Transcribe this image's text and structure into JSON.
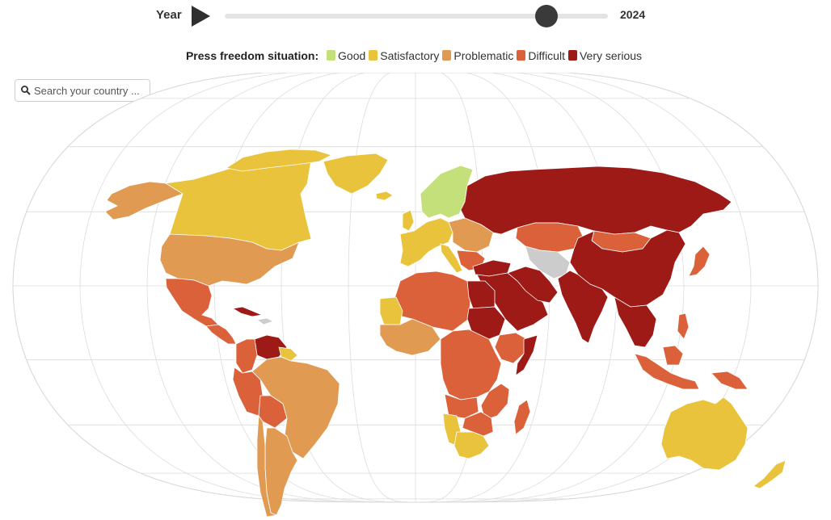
{
  "controls": {
    "year_label": "Year",
    "year_value": "2024",
    "slider": {
      "min": 2013,
      "max": 2024,
      "value": 2024,
      "thumb_fraction": 0.84
    }
  },
  "legend": {
    "title": "Press freedom situation:",
    "items": [
      {
        "label": "Good",
        "color": "#c3e07a"
      },
      {
        "label": "Satisfactory",
        "color": "#eac33d"
      },
      {
        "label": "Problematic",
        "color": "#e19a52"
      },
      {
        "label": "Difficult",
        "color": "#db613a"
      },
      {
        "label": "Very serious",
        "color": "#9e1a17"
      }
    ]
  },
  "search": {
    "placeholder": "Search your country ..."
  },
  "map": {
    "projection": "robinson",
    "graticule": true,
    "categories": {
      "good": "#c3e07a",
      "satisfactory": "#eac33d",
      "problematic": "#e19a52",
      "difficult": "#db613a",
      "very_serious": "#9e1a17"
    },
    "regions": [
      {
        "name": "Alaska",
        "category": "problematic"
      },
      {
        "name": "Canada",
        "category": "satisfactory"
      },
      {
        "name": "United States",
        "category": "problematic"
      },
      {
        "name": "Mexico",
        "category": "difficult"
      },
      {
        "name": "Central America",
        "category": "difficult"
      },
      {
        "name": "Nicaragua",
        "category": "very_serious"
      },
      {
        "name": "Cuba",
        "category": "very_serious"
      },
      {
        "name": "Venezuela",
        "category": "very_serious"
      },
      {
        "name": "Colombia",
        "category": "difficult"
      },
      {
        "name": "Guianas",
        "category": "satisfactory"
      },
      {
        "name": "Peru",
        "category": "difficult"
      },
      {
        "name": "Brazil",
        "category": "problematic"
      },
      {
        "name": "Bolivia",
        "category": "difficult"
      },
      {
        "name": "Argentina",
        "category": "problematic"
      },
      {
        "name": "Chile",
        "category": "problematic"
      },
      {
        "name": "Greenland",
        "category": "satisfactory"
      },
      {
        "name": "Iceland",
        "category": "satisfactory"
      },
      {
        "name": "Scandinavia",
        "category": "good"
      },
      {
        "name": "Western Europe",
        "category": "satisfactory"
      },
      {
        "name": "Eastern Europe",
        "category": "problematic"
      },
      {
        "name": "Balkans",
        "category": "difficult"
      },
      {
        "name": "Russia",
        "category": "very_serious"
      },
      {
        "name": "Kazakhstan",
        "category": "difficult"
      },
      {
        "name": "Mongolia",
        "category": "difficult"
      },
      {
        "name": "China",
        "category": "very_serious"
      },
      {
        "name": "Middle East",
        "category": "very_serious"
      },
      {
        "name": "Iran",
        "category": "very_serious"
      },
      {
        "name": "India",
        "category": "very_serious"
      },
      {
        "name": "Southeast Asia",
        "category": "very_serious"
      },
      {
        "name": "Japan",
        "category": "difficult"
      },
      {
        "name": "Indonesia",
        "category": "difficult"
      },
      {
        "name": "Philippines",
        "category": "difficult"
      },
      {
        "name": "Papua New Guinea",
        "category": "difficult"
      },
      {
        "name": "Australia",
        "category": "satisfactory"
      },
      {
        "name": "New Zealand",
        "category": "satisfactory"
      },
      {
        "name": "North Africa",
        "category": "difficult"
      },
      {
        "name": "Mauritania",
        "category": "satisfactory"
      },
      {
        "name": "West Africa",
        "category": "problematic"
      },
      {
        "name": "Egypt",
        "category": "very_serious"
      },
      {
        "name": "Sudan",
        "category": "very_serious"
      },
      {
        "name": "Central Africa",
        "category": "difficult"
      },
      {
        "name": "East Africa",
        "category": "difficult"
      },
      {
        "name": "Somalia",
        "category": "very_serious"
      },
      {
        "name": "Namibia",
        "category": "satisfactory"
      },
      {
        "name": "South Africa",
        "category": "satisfactory"
      },
      {
        "name": "Madagascar",
        "category": "difficult"
      }
    ]
  }
}
